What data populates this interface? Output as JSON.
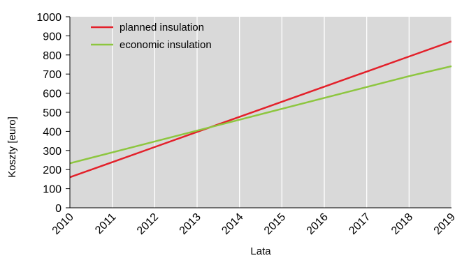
{
  "chart_data": {
    "type": "line",
    "title": "",
    "xlabel": "Lata",
    "ylabel": "Koszty [euro]",
    "x": [
      "2010",
      "2011",
      "2012",
      "2013",
      "2014",
      "2015",
      "2016",
      "2017",
      "2018",
      "2019"
    ],
    "xlim": [
      2010,
      2019
    ],
    "ylim": [
      0,
      1000
    ],
    "yticks": [
      "0",
      "100",
      "200",
      "300",
      "400",
      "500",
      "600",
      "700",
      "800",
      "900",
      "1000"
    ],
    "grid": "vertical",
    "legend_position": "top-left",
    "plot_background": "#d9d9d9",
    "series": [
      {
        "name": "planned insulation",
        "color": "#e3202a",
        "values": [
          160,
          239,
          318,
          397,
          476,
          555,
          634,
          713,
          792,
          871
        ]
      },
      {
        "name": "economic insulation",
        "color": "#8dc63f",
        "values": [
          233,
          290,
          347,
          404,
          461,
          518,
          575,
          632,
          689,
          741
        ]
      }
    ]
  }
}
